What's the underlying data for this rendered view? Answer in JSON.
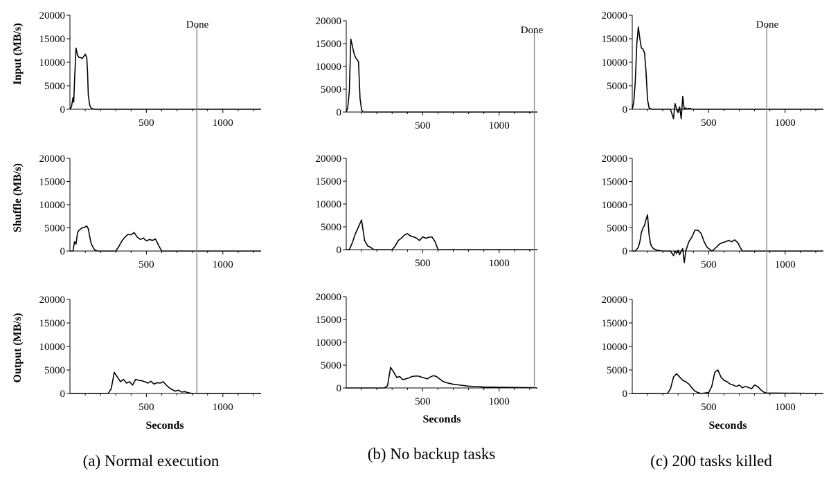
{
  "figure": {
    "captions": [
      "(a) Normal execution",
      "(b) No backup tasks",
      "(c) 200 tasks killed"
    ],
    "row_ylabels": [
      "Input (MB/s)",
      "Shuffle (MB/s)",
      "Output (MB/s)"
    ],
    "xlabel": "Seconds",
    "done_label": "Done"
  },
  "chart_data": [
    {
      "type": "line",
      "column": "(a) Normal execution",
      "row": "Input (MB/s)",
      "xlim": [
        0,
        1250
      ],
      "ylim": [
        0,
        20000
      ],
      "xticks": [
        500,
        1000
      ],
      "yticks": [
        0,
        5000,
        10000,
        15000,
        20000
      ],
      "done_x": 830,
      "x": [
        0,
        10,
        20,
        25,
        30,
        40,
        50,
        60,
        70,
        80,
        90,
        100,
        110,
        115,
        120,
        130,
        140,
        160,
        1250
      ],
      "y": [
        0,
        500,
        2500,
        1500,
        6000,
        13000,
        11500,
        11000,
        11000,
        10800,
        11200,
        11700,
        11000,
        8000,
        3000,
        800,
        200,
        0,
        0
      ]
    },
    {
      "type": "line",
      "column": "(a) Normal execution",
      "row": "Shuffle (MB/s)",
      "xlim": [
        0,
        1250
      ],
      "ylim": [
        0,
        20000
      ],
      "xticks": [
        500,
        1000
      ],
      "yticks": [
        0,
        5000,
        10000,
        15000,
        20000
      ],
      "done_x": 830,
      "x": [
        0,
        20,
        30,
        40,
        50,
        60,
        80,
        100,
        110,
        120,
        130,
        140,
        160,
        180,
        300,
        320,
        340,
        360,
        380,
        400,
        420,
        440,
        460,
        480,
        500,
        520,
        540,
        560,
        580,
        600,
        1250
      ],
      "y": [
        0,
        0,
        2000,
        1500,
        4000,
        4500,
        5000,
        5200,
        5400,
        4800,
        3000,
        1500,
        300,
        0,
        0,
        1000,
        2200,
        3000,
        3600,
        3500,
        4000,
        3000,
        2500,
        2800,
        2200,
        2500,
        2300,
        2600,
        1200,
        0,
        0
      ]
    },
    {
      "type": "line",
      "column": "(a) Normal execution",
      "row": "Output (MB/s)",
      "xlim": [
        0,
        1250
      ],
      "ylim": [
        0,
        20000
      ],
      "xticks": [
        500,
        1000
      ],
      "yticks": [
        0,
        5000,
        10000,
        15000,
        20000
      ],
      "done_x": 830,
      "x": [
        0,
        250,
        270,
        290,
        310,
        330,
        350,
        370,
        390,
        410,
        430,
        450,
        470,
        490,
        510,
        530,
        550,
        570,
        590,
        610,
        630,
        650,
        670,
        690,
        710,
        730,
        750,
        770,
        800,
        1250
      ],
      "y": [
        0,
        0,
        1000,
        4500,
        3500,
        2500,
        3000,
        2200,
        2500,
        1800,
        3000,
        2800,
        2700,
        2500,
        2200,
        2600,
        2000,
        2300,
        2200,
        2500,
        1800,
        1200,
        800,
        500,
        700,
        300,
        400,
        200,
        0,
        0
      ]
    },
    {
      "type": "line",
      "column": "(b) No backup tasks",
      "row": "Input (MB/s)",
      "xlim": [
        0,
        1250
      ],
      "ylim": [
        0,
        20000
      ],
      "xticks": [
        500,
        1000
      ],
      "yticks": [
        0,
        5000,
        10000,
        15000,
        20000
      ],
      "done_x": 1230,
      "x": [
        0,
        10,
        20,
        30,
        40,
        50,
        60,
        70,
        80,
        90,
        100,
        110,
        1250
      ],
      "y": [
        0,
        1000,
        4500,
        16000,
        14500,
        13000,
        12000,
        11500,
        11000,
        3000,
        500,
        0,
        0
      ]
    },
    {
      "type": "line",
      "column": "(b) No backup tasks",
      "row": "Shuffle (MB/s)",
      "xlim": [
        0,
        1250
      ],
      "ylim": [
        0,
        20000
      ],
      "xticks": [
        500,
        1000
      ],
      "yticks": [
        0,
        5000,
        10000,
        15000,
        20000
      ],
      "done_x": 1230,
      "x": [
        0,
        20,
        40,
        60,
        80,
        100,
        120,
        140,
        160,
        180,
        300,
        320,
        340,
        360,
        380,
        400,
        420,
        440,
        460,
        480,
        500,
        520,
        540,
        560,
        580,
        600,
        1250
      ],
      "y": [
        0,
        0,
        1500,
        3500,
        5000,
        6500,
        2000,
        800,
        500,
        0,
        0,
        800,
        2000,
        2500,
        3200,
        3500,
        3000,
        2800,
        2500,
        2000,
        2800,
        2500,
        2700,
        2800,
        1800,
        0,
        0
      ]
    },
    {
      "type": "line",
      "column": "(b) No backup tasks",
      "row": "Output (MB/s)",
      "xlim": [
        0,
        1250
      ],
      "ylim": [
        0,
        20000
      ],
      "xticks": [
        500,
        1000
      ],
      "yticks": [
        0,
        5000,
        10000,
        15000,
        20000
      ],
      "done_x": 1230,
      "x": [
        0,
        250,
        270,
        290,
        310,
        330,
        350,
        370,
        390,
        410,
        430,
        450,
        470,
        490,
        510,
        530,
        550,
        570,
        590,
        610,
        630,
        650,
        700,
        750,
        800,
        850,
        900,
        1000,
        1100,
        1230,
        1250
      ],
      "y": [
        0,
        0,
        500,
        4500,
        3500,
        2300,
        2500,
        1800,
        2000,
        2200,
        2500,
        2600,
        2600,
        2400,
        2200,
        2000,
        2400,
        2700,
        2500,
        2000,
        1500,
        1200,
        800,
        600,
        400,
        300,
        200,
        150,
        100,
        50,
        0
      ]
    },
    {
      "type": "line",
      "column": "(c) 200 tasks killed",
      "row": "Input (MB/s)",
      "xlim": [
        0,
        1250
      ],
      "ylim": [
        0,
        20000
      ],
      "xticks": [
        500,
        1000
      ],
      "yticks": [
        0,
        5000,
        10000,
        15000,
        20000
      ],
      "done_x": 880,
      "x": [
        0,
        10,
        20,
        30,
        40,
        50,
        60,
        70,
        80,
        90,
        100,
        110,
        120,
        130,
        250,
        270,
        280,
        290,
        300,
        310,
        320,
        330,
        340,
        350,
        360,
        370,
        400,
        1250
      ],
      "y": [
        0,
        1500,
        6000,
        14000,
        17500,
        15000,
        13000,
        12800,
        12000,
        8000,
        2000,
        300,
        100,
        0,
        0,
        -2000,
        1200,
        0,
        -700,
        500,
        -2000,
        2700,
        0,
        300,
        0,
        200,
        0,
        0
      ]
    },
    {
      "type": "line",
      "column": "(c) 200 tasks killed",
      "row": "Shuffle (MB/s)",
      "xlim": [
        0,
        1250
      ],
      "ylim": [
        0,
        20000
      ],
      "xticks": [
        500,
        1000
      ],
      "yticks": [
        0,
        5000,
        10000,
        15000,
        20000
      ],
      "done_x": 880,
      "x": [
        0,
        20,
        40,
        50,
        60,
        70,
        80,
        90,
        100,
        110,
        120,
        130,
        140,
        160,
        180,
        200,
        250,
        270,
        280,
        290,
        300,
        310,
        320,
        330,
        340,
        350,
        360,
        370,
        390,
        410,
        430,
        450,
        470,
        490,
        510,
        520,
        530,
        550,
        570,
        590,
        610,
        630,
        650,
        670,
        690,
        710,
        720,
        1250
      ],
      "y": [
        0,
        0,
        800,
        2000,
        4000,
        5000,
        5500,
        6800,
        7800,
        3500,
        1500,
        800,
        500,
        200,
        100,
        0,
        0,
        -1000,
        0,
        -500,
        200,
        -800,
        0,
        500,
        -2500,
        0,
        1000,
        2000,
        3000,
        4500,
        4500,
        3800,
        2000,
        800,
        300,
        0,
        200,
        800,
        1500,
        1800,
        2000,
        2300,
        2000,
        2400,
        1800,
        500,
        0,
        0
      ]
    },
    {
      "type": "line",
      "column": "(c) 200 tasks killed",
      "row": "Output (MB/s)",
      "xlim": [
        0,
        1250
      ],
      "ylim": [
        0,
        20000
      ],
      "xticks": [
        500,
        1000
      ],
      "yticks": [
        0,
        5000,
        10000,
        15000,
        20000
      ],
      "done_x": 880,
      "x": [
        0,
        230,
        250,
        270,
        290,
        310,
        330,
        350,
        370,
        390,
        410,
        430,
        450,
        500,
        520,
        540,
        560,
        580,
        600,
        620,
        640,
        660,
        680,
        700,
        720,
        740,
        760,
        780,
        800,
        820,
        840,
        860,
        880,
        1250
      ],
      "y": [
        0,
        0,
        1000,
        3500,
        4200,
        3500,
        2800,
        2500,
        2000,
        1200,
        500,
        200,
        0,
        200,
        1500,
        4500,
        5000,
        3500,
        2800,
        2500,
        2000,
        1800,
        1500,
        1800,
        1200,
        1500,
        1300,
        1000,
        1800,
        1500,
        800,
        300,
        100,
        0
      ]
    }
  ]
}
